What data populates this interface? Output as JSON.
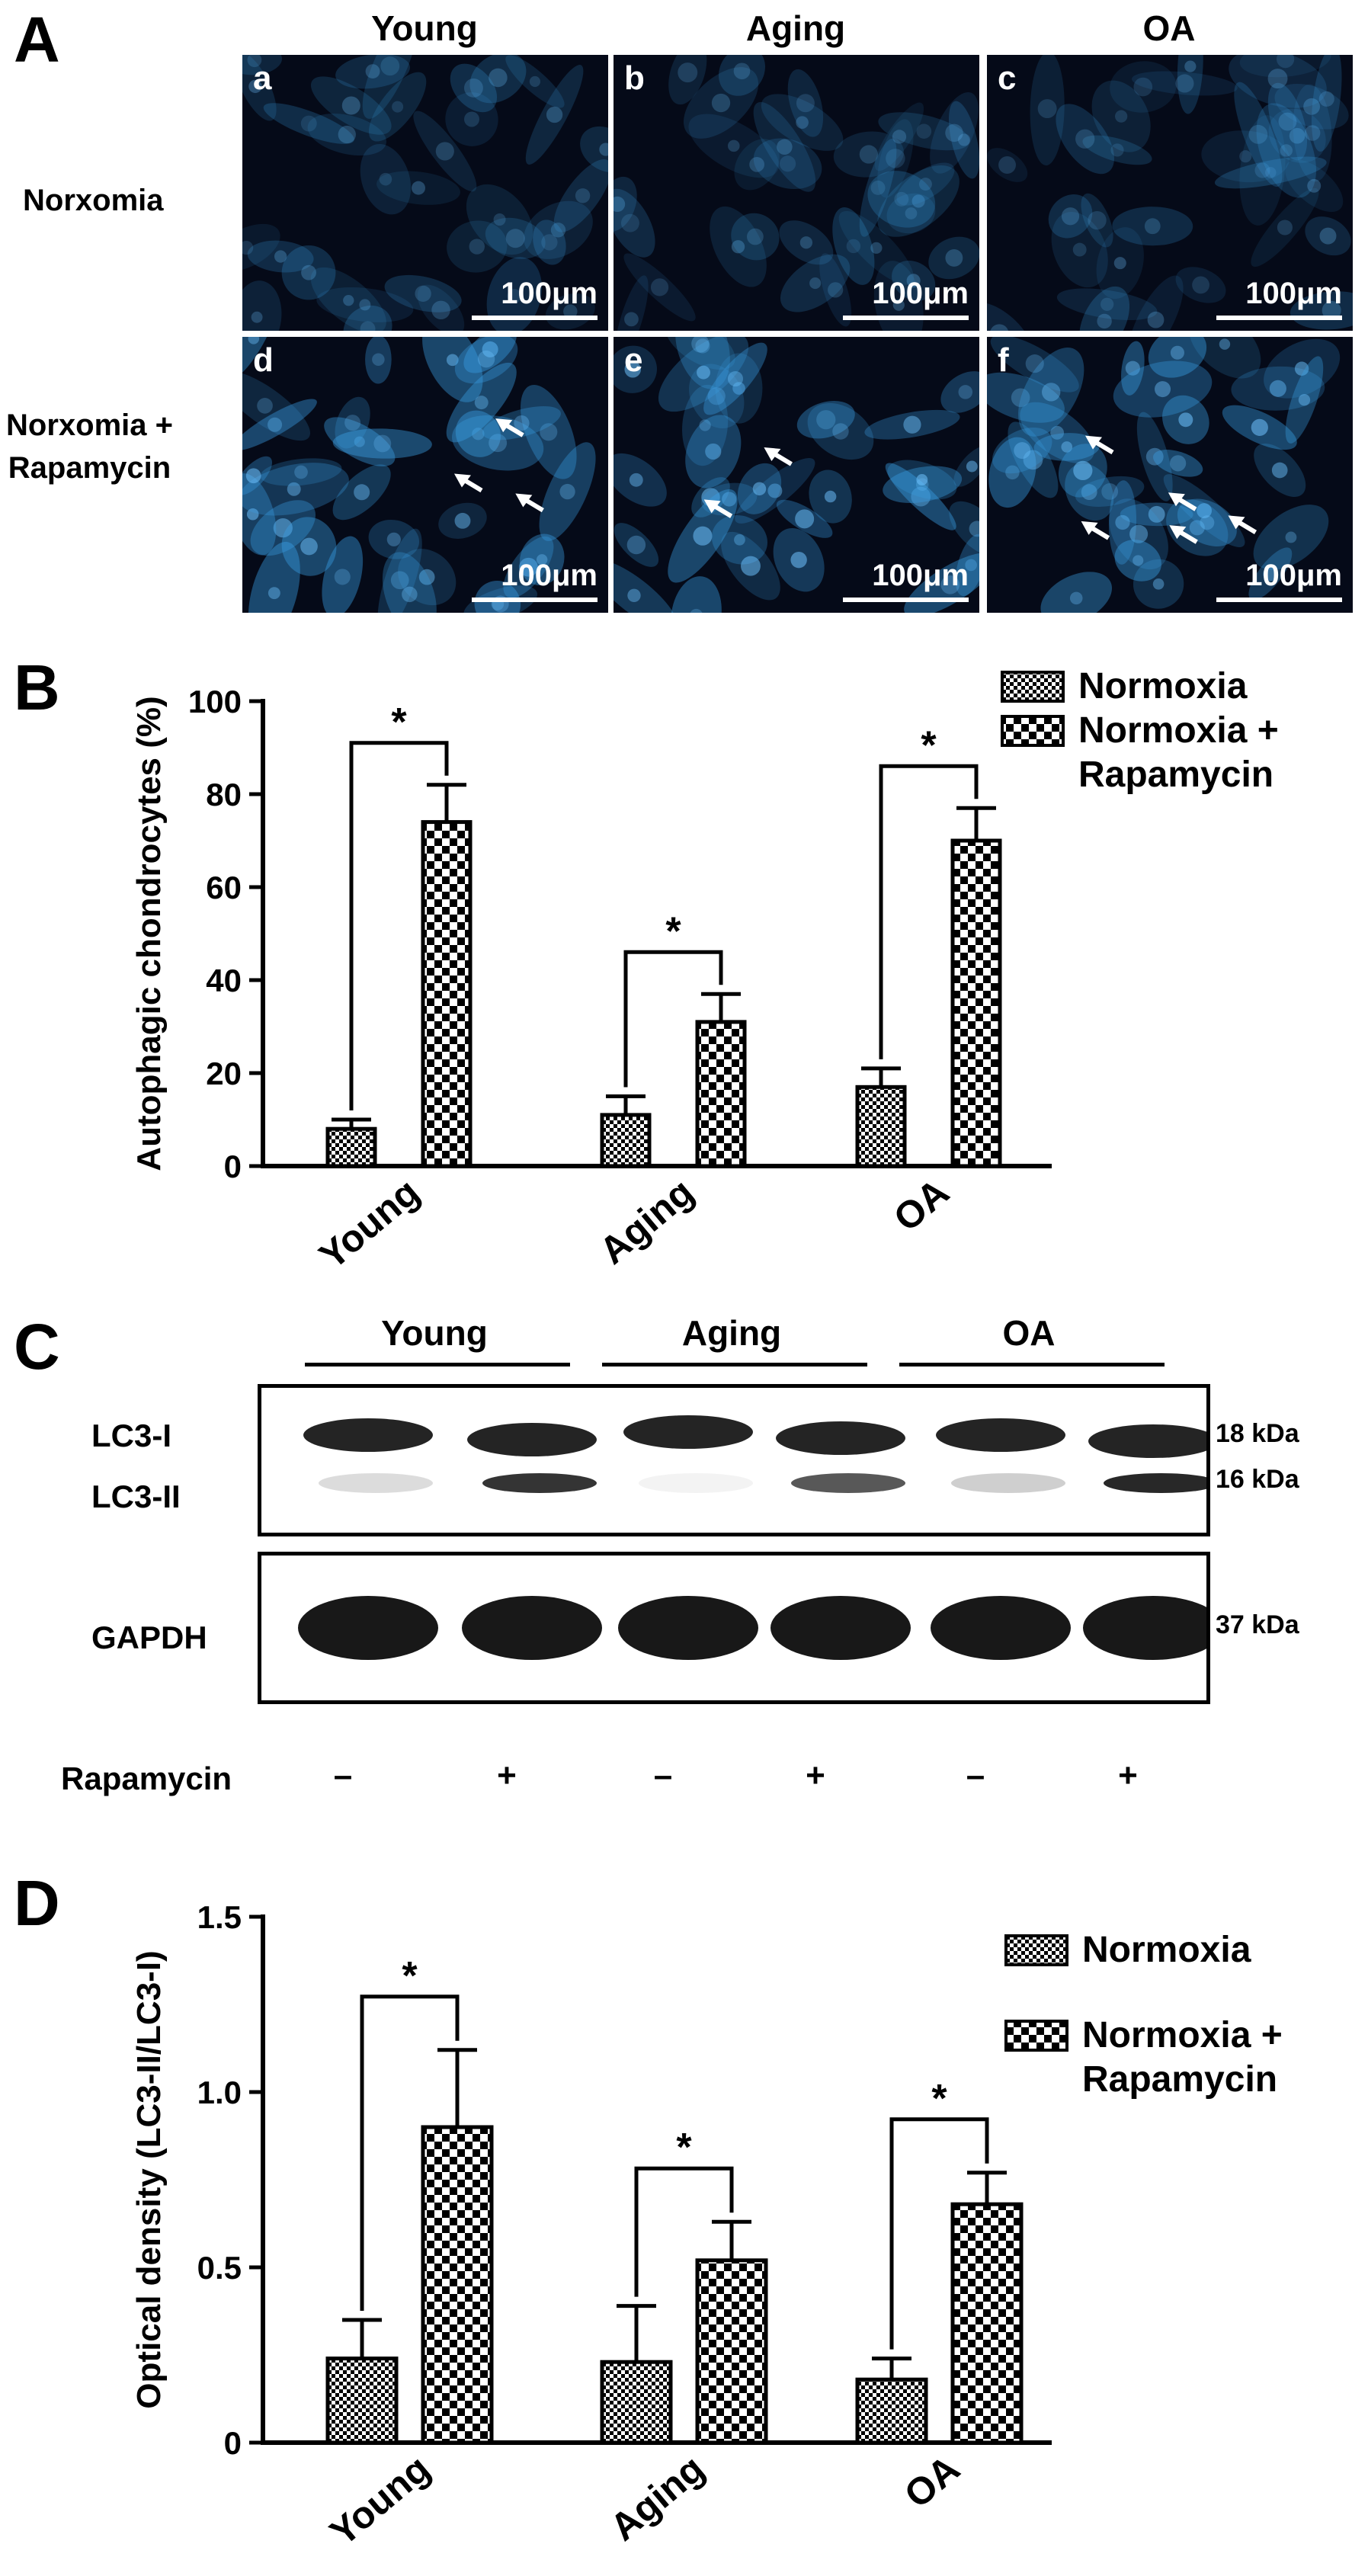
{
  "panel_a": {
    "letter": "A",
    "columns": [
      "Young",
      "Aging",
      "OA"
    ],
    "rows": [
      {
        "label_line1": "Norxomia",
        "label_line2": ""
      },
      {
        "label_line1": "Norxomia +",
        "label_line2": "Rapamycin"
      }
    ],
    "images": [
      {
        "letter": "a",
        "arrows": 0
      },
      {
        "letter": "b",
        "arrows": 0
      },
      {
        "letter": "c",
        "arrows": 0
      },
      {
        "letter": "d",
        "arrows": 3
      },
      {
        "letter": "e",
        "arrows": 2
      },
      {
        "letter": "f",
        "arrows": 5
      }
    ],
    "scale_label": "100μm",
    "colors": {
      "background": "#050a18",
      "stain": "#3aa0e6"
    }
  },
  "panel_b": {
    "letter": "B"
  },
  "panel_c": {
    "letter": "C",
    "groups": [
      "Young",
      "Aging",
      "OA"
    ],
    "band_labels": {
      "lc3_1": "LC3-I",
      "lc3_2": "LC3-II",
      "gapdh": "GAPDH"
    },
    "kda": {
      "lc3_1": "18 kDa",
      "lc3_2": "16 kDa",
      "gapdh": "37 kDa"
    },
    "treatment_label": "Rapamycin",
    "treatment_signs": [
      "–",
      "+",
      "–",
      "+",
      "–",
      "+"
    ]
  },
  "panel_d": {
    "letter": "D"
  },
  "chart_data": [
    {
      "type": "bar",
      "panel": "B",
      "ylabel": "Autophagic chondrocytes (%)",
      "categories": [
        "Young",
        "Aging",
        "OA"
      ],
      "ylim": [
        0,
        100
      ],
      "yticks": [
        "0",
        "20",
        "40",
        "60",
        "80",
        "100"
      ],
      "series": [
        {
          "name": "Normoxia",
          "values": [
            8,
            11,
            17
          ],
          "errors": [
            2,
            4,
            4
          ]
        },
        {
          "name": "Normoxia + Rapamycin",
          "values": [
            74,
            31,
            70
          ],
          "errors": [
            8,
            6,
            7
          ]
        }
      ],
      "legend": [
        "Normoxia",
        "Normoxia +",
        "Rapamycin"
      ],
      "significance": [
        "*",
        "*",
        "*"
      ]
    },
    {
      "type": "bar",
      "panel": "D",
      "ylabel": "Optical density (LC3-II/LC3-I)",
      "categories": [
        "Young",
        "Aging",
        "OA"
      ],
      "ylim": [
        0,
        1.5
      ],
      "yticks": [
        "0",
        "0.5",
        "1.0",
        "1.5"
      ],
      "series": [
        {
          "name": "Normoxia",
          "values": [
            0.24,
            0.23,
            0.18
          ],
          "errors": [
            0.11,
            0.16,
            0.06
          ]
        },
        {
          "name": "Normoxia + Rapamycin",
          "values": [
            0.9,
            0.52,
            0.68
          ],
          "errors": [
            0.22,
            0.11,
            0.09
          ]
        }
      ],
      "legend": [
        "Normoxia",
        "Normoxia +",
        "Rapamycin"
      ],
      "significance": [
        "*",
        "*",
        "*"
      ]
    }
  ]
}
